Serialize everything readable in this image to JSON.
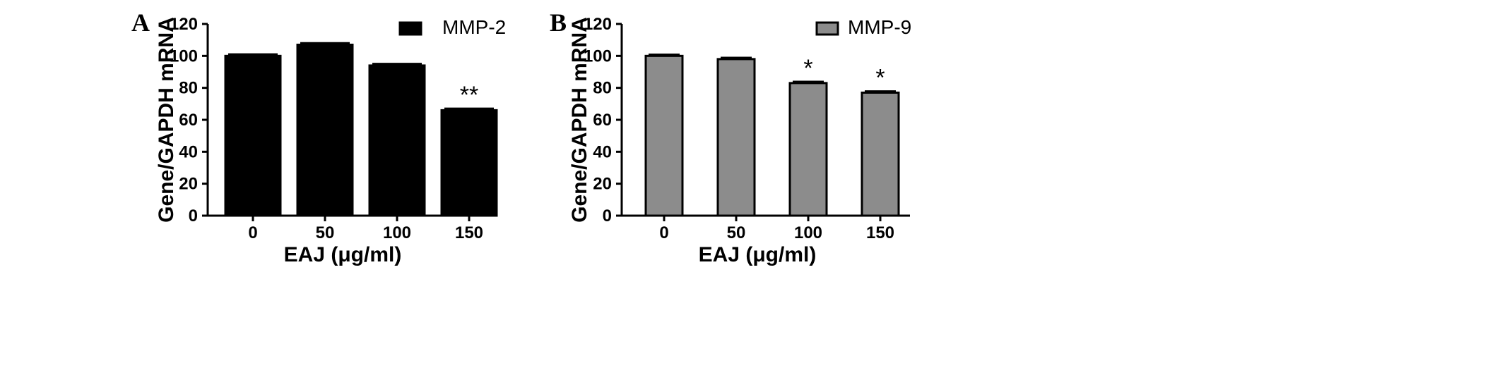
{
  "chart_data": [
    {
      "panel": "A",
      "type": "bar",
      "categories": [
        "0",
        "50",
        "100",
        "150"
      ],
      "series": [
        {
          "name": "MMP-2",
          "values": [
            100,
            107,
            94,
            66
          ],
          "errors": [
            1,
            1,
            1,
            1
          ]
        }
      ],
      "annotations": [
        "",
        "",
        "",
        "**"
      ],
      "xlabel": "EAJ (μg/ml)",
      "ylabel": "Gene/GAPDH mRNA",
      "ylim": [
        0,
        120
      ],
      "yticks": [
        "0",
        "20",
        "40",
        "60",
        "80",
        "100",
        "120"
      ],
      "legend": "top-right",
      "grid": false,
      "colors": {
        "fill": "#000000",
        "stroke": "#000000"
      }
    },
    {
      "panel": "B",
      "type": "bar",
      "categories": [
        "0",
        "50",
        "100",
        "150"
      ],
      "series": [
        {
          "name": "MMP-9",
          "values": [
            100,
            98,
            83,
            77
          ],
          "errors": [
            0.8,
            0.8,
            0.8,
            0.8
          ]
        }
      ],
      "annotations": [
        "",
        "",
        "*",
        "*"
      ],
      "xlabel": "EAJ (μg/ml)",
      "ylabel": "Gene/GAPDH mRNA",
      "ylim": [
        0,
        120
      ],
      "yticks": [
        "0",
        "20",
        "40",
        "60",
        "80",
        "100",
        "120"
      ],
      "legend": "top-right",
      "grid": false,
      "colors": {
        "fill": "#8c8c8c",
        "stroke": "#000000"
      }
    }
  ]
}
